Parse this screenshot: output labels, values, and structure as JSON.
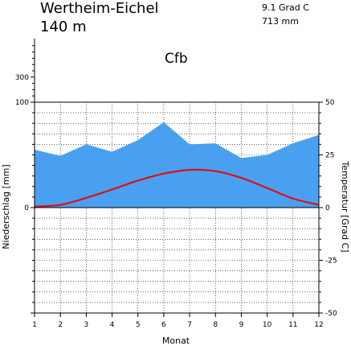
{
  "station": {
    "name": "Wertheim-Eichel",
    "elevation": "140 m"
  },
  "climate": {
    "temperature": "9.1 Grad C",
    "precipitation": "713 mm",
    "koppen": "Cfb"
  },
  "colors": {
    "precip_fill": "#4aa0f0",
    "temp_line": "#dd1111",
    "axis": "#000000"
  },
  "chart_data": {
    "type": "area",
    "xlabel": "Monat",
    "ylabel_left": "Niederschlag [mm]",
    "ylabel_right": "Temperatur [Grad C]",
    "x": [
      1,
      2,
      3,
      4,
      5,
      6,
      7,
      8,
      9,
      10,
      11,
      12
    ],
    "x_ticks": [
      "1",
      "2",
      "3",
      "4",
      "5",
      "6",
      "7",
      "8",
      "9",
      "10",
      "11",
      "12"
    ],
    "left_axis": {
      "range": [
        -100,
        100
      ],
      "ticks": [
        0,
        100
      ],
      "labels": [
        "0",
        "100"
      ],
      "extra_ticks": [
        300
      ],
      "extra_labels": [
        "300"
      ]
    },
    "right_axis": {
      "range": [
        -50,
        50
      ],
      "ticks": [
        -50,
        -25,
        0,
        25,
        50
      ],
      "labels": [
        "-50",
        "-25",
        "0",
        "25",
        "50"
      ]
    },
    "series": [
      {
        "kind": "precipitation",
        "axis": "left",
        "values": [
          55,
          49,
          60,
          53,
          64,
          81,
          60,
          61,
          47,
          50,
          61,
          69
        ]
      },
      {
        "kind": "temperature",
        "axis": "right",
        "values": [
          0.5,
          1.3,
          4.6,
          8.6,
          12.8,
          16.1,
          17.9,
          17.3,
          14.1,
          9.3,
          4.3,
          1.3
        ]
      }
    ],
    "grid": true
  }
}
